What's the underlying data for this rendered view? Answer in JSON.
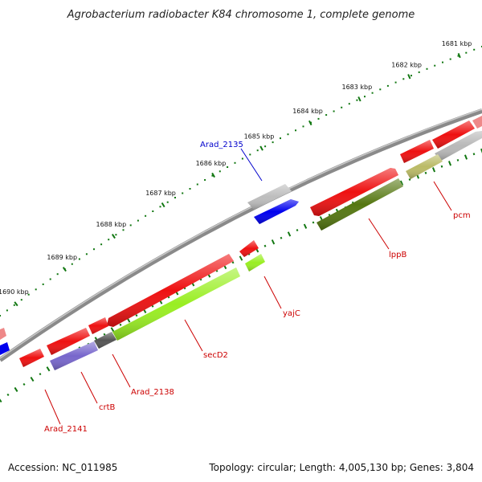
{
  "header": {
    "title": "Agrobacterium radiobacter K84 chromosome 1, complete genome"
  },
  "footer": {
    "accession": "Accession: NC_011985",
    "summary": "Topology: circular; Length: 4,005,130 bp; Genes: 3,804"
  },
  "ruler": {
    "labels": [
      "1681 kbp",
      "1682 kbp",
      "1683 kbp",
      "1684 kbp",
      "1685 kbp",
      "1686 kbp",
      "1687 kbp",
      "1688 kbp",
      "1689 kbp",
      "1690 kbp"
    ]
  },
  "genes": {
    "Arad_2135": "Arad_2135",
    "pcm": "pcm",
    "lppB": "lppB",
    "yajC": "yajC",
    "secD2": "secD2",
    "Arad_2138": "Arad_2138",
    "crtB": "crtB",
    "Arad_2141": "Arad_2141"
  },
  "colors": {
    "red_gene": "#ee0000",
    "blue_gene": "#0000ee",
    "grey_gene": "#b8b8b8",
    "lime_gene": "#99ee22",
    "olive_gene": "#557711",
    "khaki_gene": "#bbbb66",
    "purple_gene": "#7766cc",
    "darkgrey_gene": "#555555",
    "backbone": "#888888",
    "ruler_tick": "#117711",
    "label_red": "#cc0000",
    "label_blue": "#0000cc"
  }
}
